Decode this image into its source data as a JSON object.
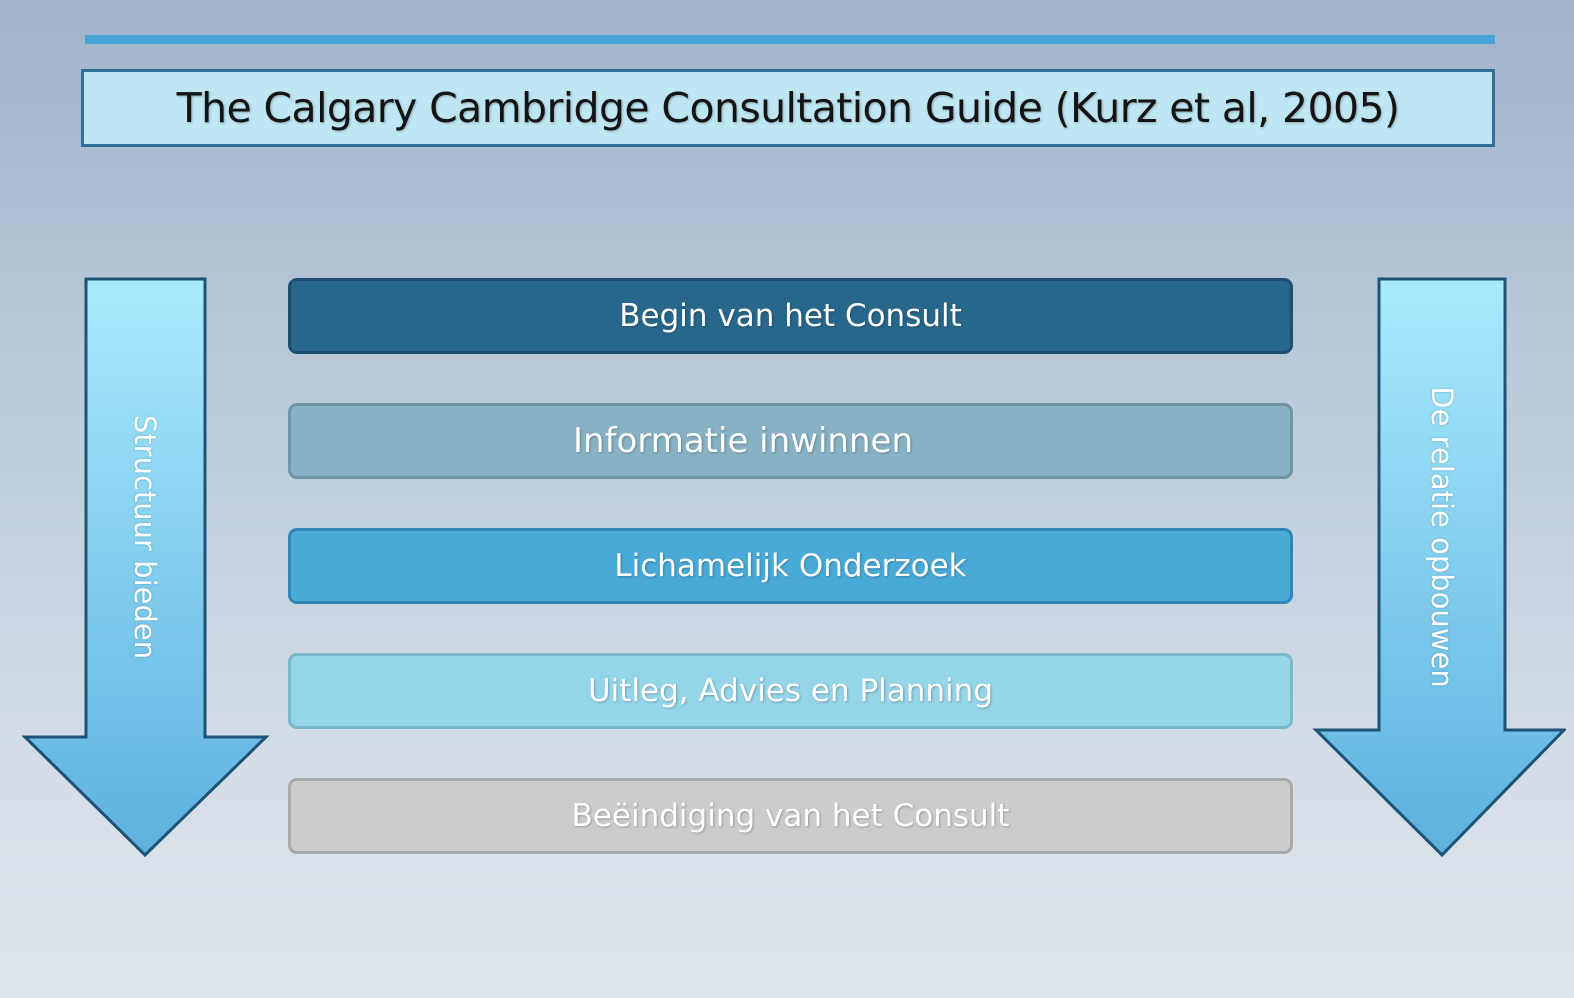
{
  "title": "The Calgary Cambridge Consultation Guide (Kurz et al, 2005)",
  "left_arrow": {
    "label": "Structuur bieden"
  },
  "right_arrow": {
    "label": "De relatie opbouwen"
  },
  "phases": [
    {
      "label": "Begin van het Consult",
      "color": "#28678c"
    },
    {
      "label": "Informatie inwinnen",
      "color": "#87b1c5"
    },
    {
      "label": "Lichamelijk Onderzoek",
      "color": "#49aad8"
    },
    {
      "label": "Uitleg, Advies en Planning",
      "color": "#95d5e9"
    },
    {
      "label": "Beëindiging van het Consult",
      "color": "#cccccc"
    }
  ],
  "colors": {
    "accent": "#44a4d4",
    "title_background": "#bfe6f3",
    "title_border": "#2f6f98",
    "arrow_light": "#a8ebfd",
    "arrow_dark": "#5db1df"
  }
}
